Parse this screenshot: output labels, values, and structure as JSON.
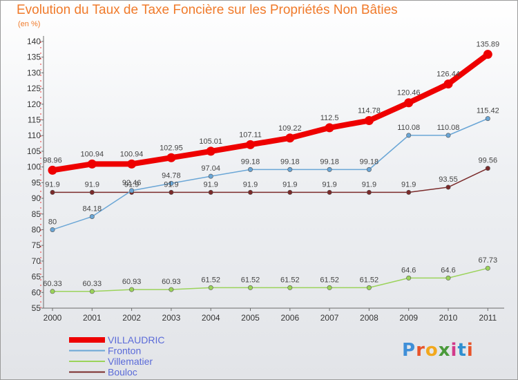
{
  "title": "Evolution du Taux de Taxe Foncière sur les Propriétés Non Bâties",
  "subtitle": "(en %)",
  "logo_text": "Proxiti",
  "chart_data": {
    "type": "line",
    "x": [
      "2000",
      "2001",
      "2002",
      "2003",
      "2004",
      "2005",
      "2006",
      "2007",
      "2008",
      "2009",
      "2010",
      "2011"
    ],
    "ylim": [
      55,
      140
    ],
    "yticks": [
      55,
      60,
      65,
      70,
      75,
      80,
      85,
      90,
      95,
      100,
      105,
      110,
      115,
      120,
      125,
      130,
      135,
      140
    ],
    "grid": false,
    "legend_position": "bottom-left",
    "series": [
      {
        "name": "VILLAUDRIC",
        "color": "#ee0000",
        "values": [
          98.96,
          100.94,
          100.94,
          102.95,
          105.01,
          107.11,
          109.22,
          112.5,
          114.78,
          120.46,
          126.44,
          135.89
        ],
        "labels": [
          "98.96",
          "100.94",
          "100.94",
          "102.95",
          "105.01",
          "107.11",
          "109.22",
          "112.5",
          "114.78",
          "120.46",
          "126.44",
          "135.89"
        ]
      },
      {
        "name": "Fronton",
        "color": "#6aa6d6",
        "values": [
          80,
          84.18,
          92.46,
          94.78,
          97.04,
          99.18,
          99.18,
          99.18,
          99.18,
          110.08,
          110.08,
          115.42
        ],
        "labels": [
          "80",
          "84.18",
          "92.46",
          "94.78",
          "97.04",
          "99.18",
          "99.18",
          "99.18",
          "99.18",
          "110.08",
          "110.08",
          "115.42"
        ]
      },
      {
        "name": "Villematier",
        "color": "#9bd35a",
        "values": [
          60.33,
          60.33,
          60.93,
          60.93,
          61.52,
          61.52,
          61.52,
          61.52,
          61.52,
          64.6,
          64.6,
          67.73
        ],
        "labels": [
          "60.33",
          "60.33",
          "60.93",
          "60.93",
          "61.52",
          "61.52",
          "61.52",
          "61.52",
          "61.52",
          "64.6",
          "64.6",
          "67.73"
        ]
      },
      {
        "name": "Bouloc",
        "color": "#7a2a2a",
        "values": [
          91.9,
          91.9,
          91.9,
          91.9,
          91.9,
          91.9,
          91.9,
          91.9,
          91.9,
          91.9,
          93.55,
          99.56
        ],
        "labels": [
          "91.9",
          "91.9",
          "91.9",
          "91.9",
          "91.9",
          "91.9",
          "91.9",
          "91.9",
          "91.9",
          "91.9",
          "93.55",
          "99.56"
        ]
      }
    ]
  }
}
